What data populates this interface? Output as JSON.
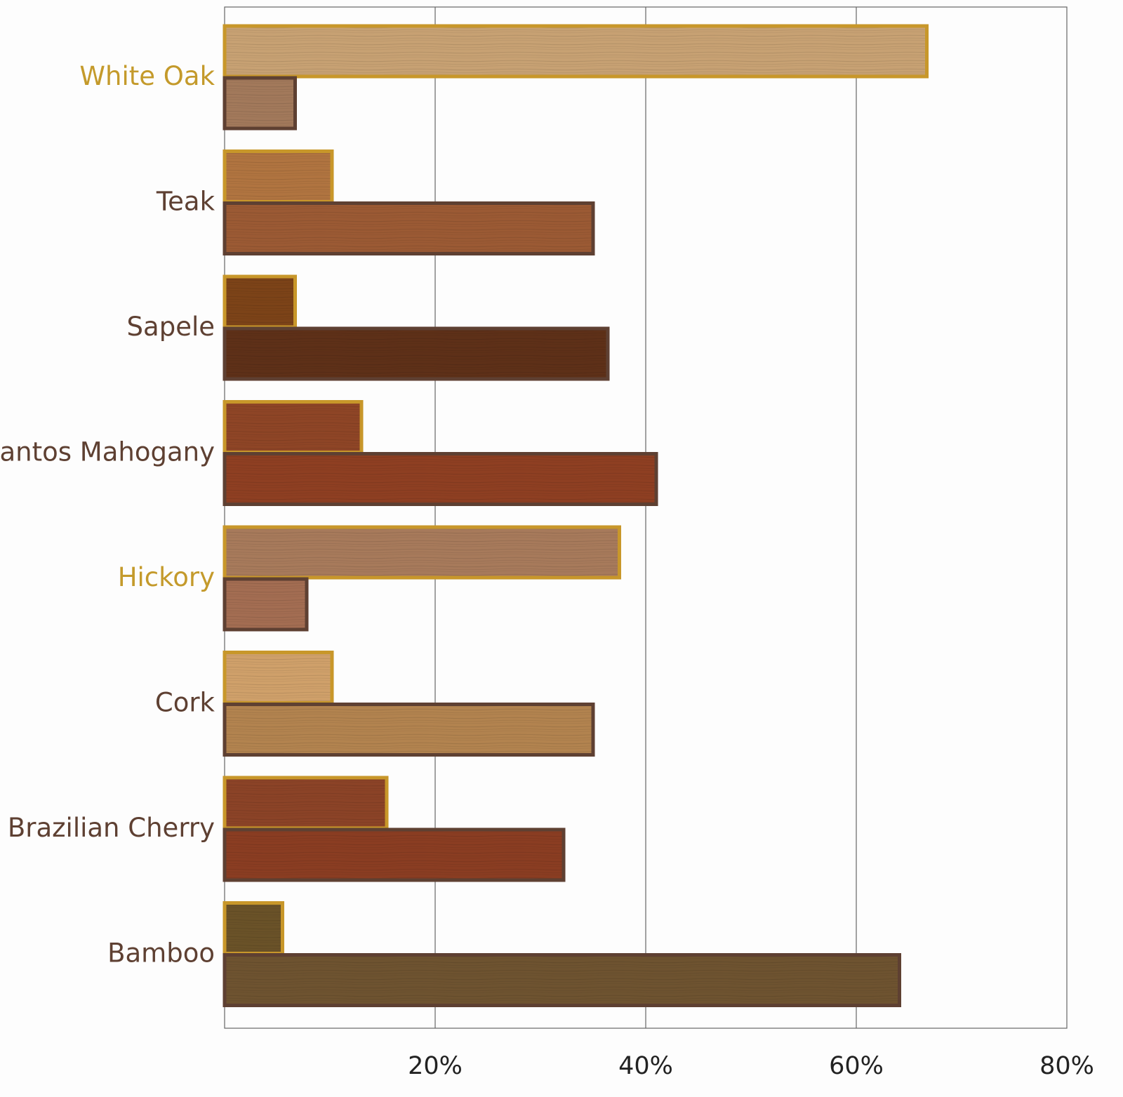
{
  "chart_data": {
    "type": "bar",
    "orientation": "horizontal",
    "categories": [
      "White Oak",
      "Teak",
      "Sapele",
      "Santos Mahogany",
      "Hickory",
      "Cork",
      "Brazilian Cherry",
      "Bamboo"
    ],
    "highlighted_categories": [
      "White Oak",
      "Hickory"
    ],
    "series": [
      {
        "color": "#c8972a",
        "values": [
          66.7,
          10.2,
          6.7,
          13.0,
          37.5,
          10.2,
          15.4,
          5.5
        ],
        "fills": [
          "#c7a173",
          "#b07440",
          "#7c4318",
          "#8e4526",
          "#a77a5b",
          "#cfa06a",
          "#8b4327",
          "#6a5228"
        ]
      },
      {
        "color": "#5e4032",
        "values": [
          6.7,
          35.0,
          36.4,
          41.0,
          7.8,
          35.0,
          32.2,
          64.1
        ],
        "fills": [
          "#a2795b",
          "#9b5a34",
          "#5e3018",
          "#8e3f22",
          "#a36d52",
          "#b2834f",
          "#8a3d22",
          "#6e5330"
        ]
      }
    ],
    "xlim": [
      0,
      80
    ],
    "xticks": [
      "20%",
      "40%",
      "60%",
      "80%"
    ],
    "grid": "vertical",
    "colors": {
      "highlight_label": "#c49a2b",
      "label": "#5e4032",
      "grid": "#666666"
    }
  }
}
